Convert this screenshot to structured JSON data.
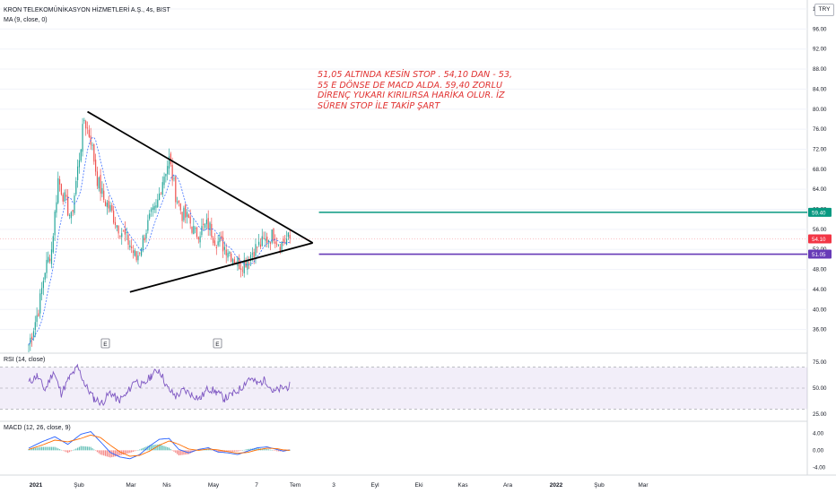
{
  "header": {
    "symbol_line": "KRON TELEKOMÜNİKASYON HİZMETLERİ A.Ş., 4s, BIST",
    "indicator_ma": "MA (9, close, 0)",
    "currency": "TRY"
  },
  "annotation": {
    "lines": [
      "51,05 ALTINDA KESİN STOP . 54,10 DAN - 53,",
      "55 E DÖNSE DE MACD ALDA. 59,40 ZORLU",
      "DİRENÇ YUKARI KIRILIRSA HARİKA OLUR. İZ",
      "SÜREN STOP İLE TAKİP ŞART"
    ],
    "color": "#e0302f"
  },
  "earnings_markers": [
    "E",
    "E"
  ],
  "colors": {
    "up": "#26a69a",
    "down": "#ef5350",
    "ma": "#2962ff",
    "resistance": "#089981",
    "support": "#673ab7",
    "rsi": "#7e57c2",
    "macd": "#2962ff",
    "signal": "#ff6d00",
    "price_tag": "#f23645"
  },
  "chart_data": [
    {
      "type": "candlestick",
      "title": "KRON TELEKOMÜNİKASYON HİZMETLERİ A.Ş., 4s, BIST",
      "ylim": [
        32,
        100
      ],
      "y_ticks": [
        "100.00",
        "96.00",
        "92.00",
        "88.00",
        "84.00",
        "80.00",
        "76.00",
        "72.00",
        "68.00",
        "64.00",
        "60.00",
        "56.00",
        "52.00",
        "48.00",
        "44.00",
        "40.00",
        "36.00"
      ],
      "x_ticks": [
        "2021",
        "Şub",
        "Mar",
        "Nis",
        "May",
        "7",
        "Tem",
        "3",
        "Eyl",
        "Eki",
        "Kas",
        "Ara",
        "2022",
        "Şub",
        "Mar"
      ],
      "price_path_points": [
        [
          0,
          33
        ],
        [
          6,
          40
        ],
        [
          10,
          48
        ],
        [
          14,
          52
        ],
        [
          18,
          66
        ],
        [
          22,
          62
        ],
        [
          26,
          58
        ],
        [
          30,
          68
        ],
        [
          34,
          78
        ],
        [
          38,
          74
        ],
        [
          42,
          66
        ],
        [
          46,
          62
        ],
        [
          50,
          60
        ],
        [
          54,
          57
        ],
        [
          58,
          55
        ],
        [
          62,
          53
        ],
        [
          66,
          50
        ],
        [
          70,
          54
        ],
        [
          74,
          58
        ],
        [
          78,
          60
        ],
        [
          82,
          66
        ],
        [
          86,
          70
        ],
        [
          90,
          63
        ],
        [
          94,
          59
        ],
        [
          98,
          58
        ],
        [
          102,
          55
        ],
        [
          106,
          56
        ],
        [
          110,
          57
        ],
        [
          114,
          54
        ],
        [
          118,
          53
        ],
        [
          122,
          52
        ],
        [
          126,
          50
        ],
        [
          130,
          49
        ],
        [
          134,
          50
        ],
        [
          138,
          52
        ],
        [
          142,
          53
        ],
        [
          146,
          54
        ],
        [
          150,
          55
        ],
        [
          154,
          53
        ],
        [
          158,
          54
        ],
        [
          160,
          54.1
        ]
      ],
      "current_price": "54.10",
      "levels": [
        {
          "value": 59.4,
          "label": "59.40"
        },
        {
          "value": 51.05,
          "label": "51.05"
        }
      ],
      "triangle": {
        "upper": {
          "from": [
            36,
            79.5
          ],
          "to": [
            174,
            53.3
          ]
        },
        "lower": {
          "from": [
            62,
            43.5
          ],
          "to": [
            174,
            53.3
          ]
        }
      },
      "ma": {
        "name": "MA (9, close, 0)",
        "period": 9
      }
    },
    {
      "type": "line",
      "title": "RSI (14, close)",
      "ylim": [
        20,
        80
      ],
      "y_ticks": [
        "75.00",
        "50.00",
        "25.00"
      ],
      "band": [
        30,
        70
      ],
      "midline": 50,
      "values_path_points": [
        [
          0,
          55
        ],
        [
          5,
          62
        ],
        [
          10,
          48
        ],
        [
          15,
          66
        ],
        [
          20,
          45
        ],
        [
          25,
          60
        ],
        [
          30,
          70
        ],
        [
          35,
          52
        ],
        [
          40,
          40
        ],
        [
          45,
          36
        ],
        [
          50,
          46
        ],
        [
          55,
          38
        ],
        [
          60,
          44
        ],
        [
          65,
          58
        ],
        [
          70,
          52
        ],
        [
          75,
          62
        ],
        [
          80,
          68
        ],
        [
          85,
          50
        ],
        [
          90,
          42
        ],
        [
          95,
          48
        ],
        [
          100,
          44
        ],
        [
          105,
          40
        ],
        [
          110,
          50
        ],
        [
          115,
          46
        ],
        [
          120,
          40
        ],
        [
          125,
          44
        ],
        [
          130,
          50
        ],
        [
          135,
          60
        ],
        [
          140,
          54
        ],
        [
          145,
          58
        ],
        [
          150,
          46
        ],
        [
          155,
          50
        ],
        [
          160,
          52
        ]
      ]
    },
    {
      "type": "bar+line",
      "title": "MACD (12, 26, close, 9)",
      "ylim": [
        -5,
        6
      ],
      "y_ticks": [
        "4.00",
        "0.00",
        "-4.00"
      ],
      "macd_points": [
        [
          0,
          0.5
        ],
        [
          8,
          2.0
        ],
        [
          16,
          3.2
        ],
        [
          24,
          1.4
        ],
        [
          32,
          3.8
        ],
        [
          38,
          4.4
        ],
        [
          44,
          2.0
        ],
        [
          50,
          -0.5
        ],
        [
          56,
          -1.6
        ],
        [
          62,
          -2.0
        ],
        [
          68,
          -1.0
        ],
        [
          74,
          1.0
        ],
        [
          80,
          2.6
        ],
        [
          86,
          2.8
        ],
        [
          92,
          0.2
        ],
        [
          98,
          -0.6
        ],
        [
          104,
          0.2
        ],
        [
          110,
          0.6
        ],
        [
          116,
          -0.4
        ],
        [
          122,
          -0.6
        ],
        [
          128,
          -1.0
        ],
        [
          134,
          -0.2
        ],
        [
          140,
          0.6
        ],
        [
          146,
          0.8
        ],
        [
          152,
          0.2
        ],
        [
          156,
          -0.2
        ],
        [
          160,
          0.1
        ]
      ],
      "signal_points": [
        [
          0,
          0.2
        ],
        [
          8,
          1.2
        ],
        [
          16,
          2.4
        ],
        [
          24,
          2.0
        ],
        [
          32,
          2.8
        ],
        [
          38,
          3.6
        ],
        [
          44,
          3.0
        ],
        [
          50,
          1.2
        ],
        [
          56,
          -0.4
        ],
        [
          62,
          -1.4
        ],
        [
          68,
          -1.2
        ],
        [
          74,
          -0.2
        ],
        [
          80,
          1.2
        ],
        [
          86,
          2.2
        ],
        [
          92,
          1.4
        ],
        [
          98,
          0.3
        ],
        [
          104,
          0.0
        ],
        [
          110,
          0.3
        ],
        [
          116,
          0.1
        ],
        [
          122,
          -0.3
        ],
        [
          128,
          -0.7
        ],
        [
          134,
          -0.5
        ],
        [
          140,
          0.1
        ],
        [
          146,
          0.5
        ],
        [
          152,
          0.4
        ],
        [
          156,
          0.1
        ],
        [
          160,
          0.0
        ]
      ]
    }
  ]
}
